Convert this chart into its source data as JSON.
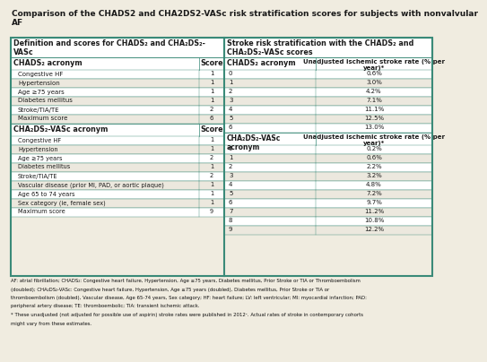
{
  "title": "Comparison of the CHADS2 and CHA2DS2-VASc risk stratification scores for subjects with nonvalvular\nAF",
  "title_fontsize": 6.5,
  "background_color": "#f0ece0",
  "header_color": "#3a8a78",
  "text_dark": "#1a1a1a",
  "white": "#ffffff",
  "alt_row": "#ece8de",
  "left_header1": "Definition and scores for CHADS₂ and CHA₂DS₂-\nVASc",
  "left_header2_chads": "CHADS₂ acronym",
  "left_header2_score": "Score",
  "chads2_rows": [
    [
      "Congestive HF",
      "1"
    ],
    [
      "Hypertension",
      "1"
    ],
    [
      "Age ≥75 years",
      "1"
    ],
    [
      "Diabetes mellitus",
      "1"
    ],
    [
      "Stroke/TIA/TE",
      "2"
    ],
    [
      "Maximum score",
      "6"
    ]
  ],
  "cha2ds2_header": "CHA₂DS₂-VASc acronym",
  "cha2ds2_score_header": "Score",
  "cha2ds2_rows": [
    [
      "Congestive HF",
      "1"
    ],
    [
      "Hypertension",
      "1"
    ],
    [
      "Age ≥75 years",
      "2"
    ],
    [
      "Diabetes mellitus",
      "1"
    ],
    [
      "Stroke/TIA/TE",
      "2"
    ],
    [
      "Vascular disease (prior MI, PAD, or aortic plaque)",
      "1"
    ],
    [
      "Age 65 to 74 years",
      "1"
    ],
    [
      "Sex category (ie, female sex)",
      "1"
    ],
    [
      "Maximum score",
      "9"
    ]
  ],
  "right_header1": "Stroke risk stratification with the CHADS₂ and\nCHA₂DS₂-VASc scores",
  "right_chads2_col1": "CHADS₂ acronym",
  "right_chads2_col2": "Unadjusted ischemic stroke rate (% per\nyear)*",
  "chads2_risk_rows": [
    [
      "0",
      "0.6%"
    ],
    [
      "1",
      "3.0%"
    ],
    [
      "2",
      "4.2%"
    ],
    [
      "3",
      "7.1%"
    ],
    [
      "4",
      "11.1%"
    ],
    [
      "5",
      "12.5%"
    ],
    [
      "6",
      "13.0%"
    ]
  ],
  "right_cha2ds2_col1": "CHA₂DS₂-VASc\nacronym",
  "right_cha2ds2_col2": "Unadjusted ischemic stroke rate (% per\nyear)*",
  "cha2ds2_risk_rows": [
    [
      "0",
      "0.2%"
    ],
    [
      "1",
      "0.6%"
    ],
    [
      "2",
      "2.2%"
    ],
    [
      "3",
      "3.2%"
    ],
    [
      "4",
      "4.8%"
    ],
    [
      "5",
      "7.2%"
    ],
    [
      "6",
      "9.7%"
    ],
    [
      "7",
      "11.2%"
    ],
    [
      "8",
      "10.8%"
    ],
    [
      "9",
      "12.2%"
    ]
  ],
  "footnote_line1": "AF: atrial fibrillation; CHADS₂: Congestive heart failure, Hypertension, Age ≥75 years, Diabetes mellitus, Prior Stroke or TIA or Thromboembolism",
  "footnote_line2": "(doubled); CHA₂DS₂-VASc: Congestive heart failure, Hypertension, Age ≥75 years (doubled), Diabetes mellitus, Prior Stroke or TIA or",
  "footnote_line3": "thromboembolism (doubled), Vascular disease, Age 65-74 years, Sex category; HF: heart failure; LV: left ventricular; MI: myocardial infarction; PAD:",
  "footnote_line4": "peripheral artery disease; TE: thromboembolic; TIA: transient ischemic attack.",
  "footnote_line5": "* These unadjusted (not adjusted for possible use of aspirin) stroke rates were published in 2012¹. Actual rates of stroke in contemporary cohorts",
  "footnote_line6": "might vary from these estimates."
}
